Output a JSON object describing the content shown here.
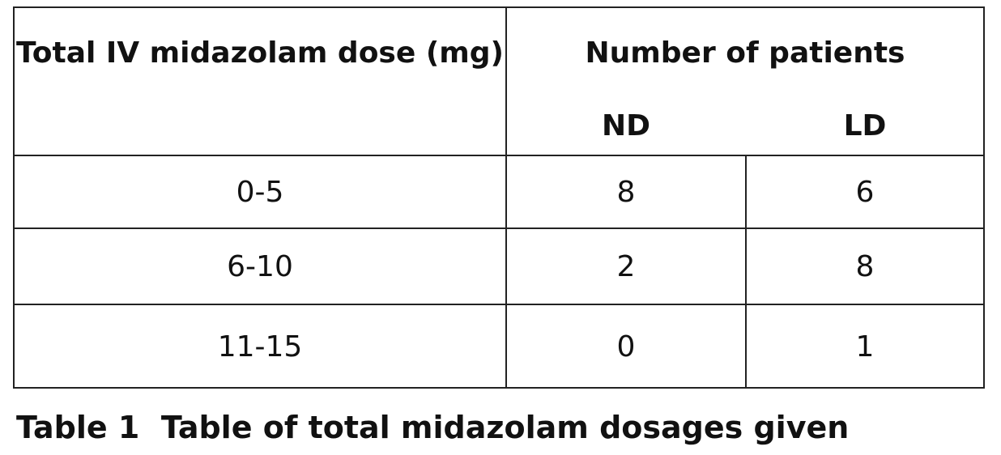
{
  "table": {
    "header": {
      "col1": "Total IV midazolam dose (mg)",
      "group": "Number of patients",
      "sub": [
        "ND",
        "LD"
      ]
    },
    "rows": [
      [
        "0-5",
        "8",
        "6"
      ],
      [
        "6-10",
        "2",
        "8"
      ],
      [
        "11-15",
        "0",
        "1"
      ]
    ]
  },
  "caption": {
    "label": "Table 1",
    "text": "Table of total midazolam dosages given"
  }
}
